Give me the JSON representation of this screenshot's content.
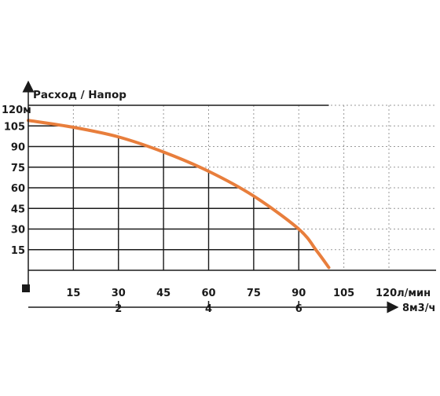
{
  "chart_data": {
    "type": "line",
    "title": "Расход / Напор",
    "y_unit_label": "120м",
    "y_ticks": [
      "15",
      "30",
      "45",
      "60",
      "75",
      "90",
      "105"
    ],
    "ylim": [
      0,
      120
    ],
    "x_ticks": [
      "15",
      "30",
      "45",
      "60",
      "75",
      "90",
      "105"
    ],
    "x_unit_label": "120л/мин",
    "xlim": [
      0,
      120
    ],
    "x2_ticks": [
      "2",
      "4",
      "6"
    ],
    "x2_unit_label": "8м3/ч",
    "x2lim": [
      0,
      8
    ],
    "grid": "dashed major + solid under curve",
    "colors": {
      "curve": "#e87e3c",
      "axis": "#1a1a1a",
      "grid": "#999999"
    },
    "series": [
      {
        "x": [
          0,
          15,
          30,
          45,
          60,
          75,
          90,
          96,
          100
        ],
        "y": [
          109,
          104,
          97,
          86,
          72,
          54,
          30,
          14,
          2
        ]
      }
    ]
  }
}
